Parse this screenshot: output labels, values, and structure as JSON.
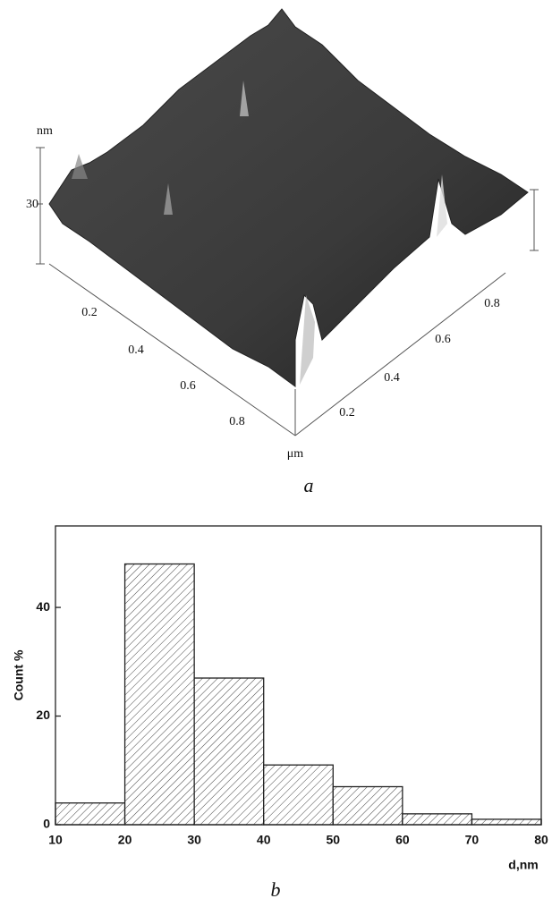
{
  "figure_a": {
    "z_unit": "nm",
    "z_tick": 30,
    "left_ticks": [
      0.2,
      0.4,
      0.6,
      0.8
    ],
    "right_ticks": [
      0.2,
      0.4,
      0.6,
      0.8
    ],
    "xy_unit": "μm",
    "caption": "a"
  },
  "chart_data": {
    "type": "histogram",
    "ylabel": "Count %",
    "xlabel": "d,nm",
    "bins": [
      10,
      20,
      30,
      40,
      50,
      60,
      70,
      80
    ],
    "values": [
      4,
      48,
      27,
      11,
      7,
      2,
      1
    ],
    "color": "#444444",
    "xlim": [
      10,
      80
    ],
    "ylim": [
      0,
      55
    ],
    "xticks": [
      10,
      20,
      30,
      40,
      50,
      60,
      70,
      80
    ],
    "yticks": [
      0,
      20,
      40
    ],
    "caption": "b"
  }
}
